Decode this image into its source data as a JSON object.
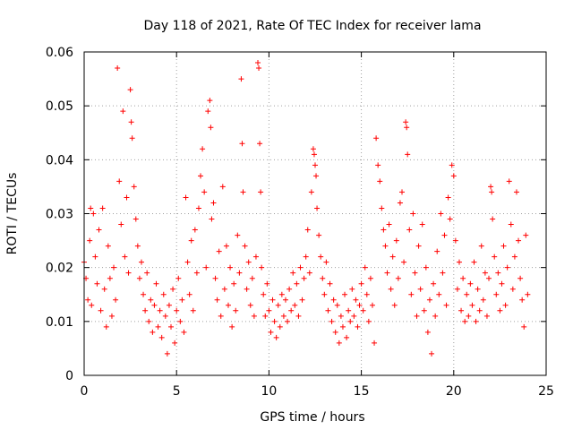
{
  "chart_data": {
    "type": "scatter",
    "title": "Day 118 of 2021, Rate Of TEC Index for receiver lama",
    "xlabel": "GPS time / hours",
    "ylabel": "ROTI / TECUs",
    "xlim": [
      0,
      25
    ],
    "ylim": [
      0,
      0.06
    ],
    "x_ticks": [
      0,
      5,
      10,
      15,
      20,
      25
    ],
    "y_ticks": [
      0,
      0.01,
      0.02,
      0.03,
      0.04,
      0.05,
      0.06
    ],
    "x_tick_labels": [
      "0",
      "5",
      "10",
      "15",
      "20",
      "25"
    ],
    "y_tick_labels": [
      "0",
      "0.01",
      "0.02",
      "0.03",
      "0.04",
      "0.05",
      "0.06"
    ],
    "grid": true,
    "marker": "+",
    "color": "#ff0000",
    "series": [
      {
        "name": "ROTI",
        "points": [
          [
            0.0,
            0.021
          ],
          [
            0.1,
            0.018
          ],
          [
            0.2,
            0.014
          ],
          [
            0.3,
            0.025
          ],
          [
            0.35,
            0.031
          ],
          [
            0.4,
            0.013
          ],
          [
            0.5,
            0.03
          ],
          [
            0.6,
            0.022
          ],
          [
            0.7,
            0.017
          ],
          [
            0.8,
            0.027
          ],
          [
            0.9,
            0.012
          ],
          [
            1.0,
            0.031
          ],
          [
            1.1,
            0.016
          ],
          [
            1.2,
            0.009
          ],
          [
            1.3,
            0.024
          ],
          [
            1.4,
            0.018
          ],
          [
            1.5,
            0.011
          ],
          [
            1.6,
            0.02
          ],
          [
            1.7,
            0.014
          ],
          [
            1.8,
            0.057
          ],
          [
            1.9,
            0.036
          ],
          [
            2.0,
            0.028
          ],
          [
            2.1,
            0.049
          ],
          [
            2.2,
            0.022
          ],
          [
            2.3,
            0.033
          ],
          [
            2.4,
            0.019
          ],
          [
            2.5,
            0.053
          ],
          [
            2.55,
            0.047
          ],
          [
            2.6,
            0.044
          ],
          [
            2.7,
            0.035
          ],
          [
            2.8,
            0.029
          ],
          [
            2.9,
            0.024
          ],
          [
            3.0,
            0.018
          ],
          [
            3.1,
            0.021
          ],
          [
            3.2,
            0.015
          ],
          [
            3.3,
            0.012
          ],
          [
            3.4,
            0.019
          ],
          [
            3.5,
            0.01
          ],
          [
            3.6,
            0.014
          ],
          [
            3.7,
            0.008
          ],
          [
            3.8,
            0.013
          ],
          [
            3.9,
            0.017
          ],
          [
            4.0,
            0.009
          ],
          [
            4.1,
            0.012
          ],
          [
            4.2,
            0.007
          ],
          [
            4.3,
            0.015
          ],
          [
            4.4,
            0.011
          ],
          [
            4.5,
            0.004
          ],
          [
            4.6,
            0.013
          ],
          [
            4.7,
            0.009
          ],
          [
            4.8,
            0.016
          ],
          [
            4.9,
            0.006
          ],
          [
            5.0,
            0.012
          ],
          [
            5.1,
            0.018
          ],
          [
            5.2,
            0.01
          ],
          [
            5.3,
            0.014
          ],
          [
            5.4,
            0.008
          ],
          [
            5.5,
            0.033
          ],
          [
            5.6,
            0.021
          ],
          [
            5.7,
            0.015
          ],
          [
            5.8,
            0.025
          ],
          [
            5.9,
            0.012
          ],
          [
            6.0,
            0.027
          ],
          [
            6.1,
            0.019
          ],
          [
            6.2,
            0.031
          ],
          [
            6.3,
            0.037
          ],
          [
            6.4,
            0.042
          ],
          [
            6.5,
            0.034
          ],
          [
            6.6,
            0.02
          ],
          [
            6.7,
            0.049
          ],
          [
            6.8,
            0.051
          ],
          [
            6.85,
            0.046
          ],
          [
            6.9,
            0.029
          ],
          [
            7.0,
            0.032
          ],
          [
            7.1,
            0.018
          ],
          [
            7.2,
            0.014
          ],
          [
            7.3,
            0.023
          ],
          [
            7.4,
            0.011
          ],
          [
            7.5,
            0.035
          ],
          [
            7.6,
            0.016
          ],
          [
            7.7,
            0.024
          ],
          [
            7.8,
            0.013
          ],
          [
            7.9,
            0.02
          ],
          [
            8.0,
            0.009
          ],
          [
            8.1,
            0.017
          ],
          [
            8.2,
            0.012
          ],
          [
            8.3,
            0.026
          ],
          [
            8.4,
            0.019
          ],
          [
            8.5,
            0.055
          ],
          [
            8.55,
            0.043
          ],
          [
            8.6,
            0.034
          ],
          [
            8.7,
            0.024
          ],
          [
            8.8,
            0.016
          ],
          [
            8.9,
            0.021
          ],
          [
            9.0,
            0.013
          ],
          [
            9.1,
            0.018
          ],
          [
            9.2,
            0.011
          ],
          [
            9.3,
            0.022
          ],
          [
            9.4,
            0.058
          ],
          [
            9.45,
            0.057
          ],
          [
            9.5,
            0.043
          ],
          [
            9.55,
            0.034
          ],
          [
            9.6,
            0.02
          ],
          [
            9.7,
            0.015
          ],
          [
            9.8,
            0.011
          ],
          [
            9.9,
            0.017
          ],
          [
            10.0,
            0.012
          ],
          [
            10.1,
            0.008
          ],
          [
            10.2,
            0.014
          ],
          [
            10.3,
            0.01
          ],
          [
            10.4,
            0.007
          ],
          [
            10.5,
            0.013
          ],
          [
            10.6,
            0.009
          ],
          [
            10.7,
            0.015
          ],
          [
            10.8,
            0.011
          ],
          [
            10.9,
            0.014
          ],
          [
            11.0,
            0.01
          ],
          [
            11.1,
            0.016
          ],
          [
            11.2,
            0.012
          ],
          [
            11.3,
            0.019
          ],
          [
            11.4,
            0.013
          ],
          [
            11.5,
            0.017
          ],
          [
            11.6,
            0.011
          ],
          [
            11.7,
            0.02
          ],
          [
            11.8,
            0.014
          ],
          [
            11.9,
            0.018
          ],
          [
            12.0,
            0.022
          ],
          [
            12.1,
            0.027
          ],
          [
            12.2,
            0.019
          ],
          [
            12.3,
            0.034
          ],
          [
            12.4,
            0.042
          ],
          [
            12.45,
            0.041
          ],
          [
            12.5,
            0.039
          ],
          [
            12.55,
            0.037
          ],
          [
            12.6,
            0.031
          ],
          [
            12.7,
            0.026
          ],
          [
            12.8,
            0.022
          ],
          [
            12.9,
            0.018
          ],
          [
            13.0,
            0.015
          ],
          [
            13.1,
            0.021
          ],
          [
            13.2,
            0.012
          ],
          [
            13.3,
            0.017
          ],
          [
            13.4,
            0.01
          ],
          [
            13.5,
            0.014
          ],
          [
            13.6,
            0.008
          ],
          [
            13.7,
            0.013
          ],
          [
            13.8,
            0.006
          ],
          [
            13.9,
            0.011
          ],
          [
            14.0,
            0.009
          ],
          [
            14.1,
            0.015
          ],
          [
            14.2,
            0.007
          ],
          [
            14.3,
            0.012
          ],
          [
            14.4,
            0.01
          ],
          [
            14.5,
            0.016
          ],
          [
            14.6,
            0.011
          ],
          [
            14.7,
            0.014
          ],
          [
            14.8,
            0.009
          ],
          [
            14.9,
            0.013
          ],
          [
            15.0,
            0.017
          ],
          [
            15.1,
            0.012
          ],
          [
            15.2,
            0.02
          ],
          [
            15.3,
            0.015
          ],
          [
            15.4,
            0.01
          ],
          [
            15.5,
            0.018
          ],
          [
            15.6,
            0.013
          ],
          [
            15.7,
            0.006
          ],
          [
            15.8,
            0.044
          ],
          [
            15.9,
            0.039
          ],
          [
            16.0,
            0.036
          ],
          [
            16.1,
            0.031
          ],
          [
            16.2,
            0.027
          ],
          [
            16.3,
            0.024
          ],
          [
            16.4,
            0.019
          ],
          [
            16.5,
            0.028
          ],
          [
            16.6,
            0.016
          ],
          [
            16.7,
            0.022
          ],
          [
            16.8,
            0.013
          ],
          [
            16.9,
            0.025
          ],
          [
            17.0,
            0.018
          ],
          [
            17.1,
            0.032
          ],
          [
            17.2,
            0.034
          ],
          [
            17.3,
            0.021
          ],
          [
            17.4,
            0.047
          ],
          [
            17.45,
            0.046
          ],
          [
            17.5,
            0.041
          ],
          [
            17.6,
            0.027
          ],
          [
            17.7,
            0.015
          ],
          [
            17.8,
            0.03
          ],
          [
            17.9,
            0.019
          ],
          [
            18.0,
            0.011
          ],
          [
            18.1,
            0.024
          ],
          [
            18.2,
            0.016
          ],
          [
            18.3,
            0.028
          ],
          [
            18.4,
            0.012
          ],
          [
            18.5,
            0.02
          ],
          [
            18.6,
            0.008
          ],
          [
            18.7,
            0.014
          ],
          [
            18.8,
            0.004
          ],
          [
            18.9,
            0.017
          ],
          [
            19.0,
            0.011
          ],
          [
            19.1,
            0.023
          ],
          [
            19.2,
            0.015
          ],
          [
            19.3,
            0.03
          ],
          [
            19.4,
            0.019
          ],
          [
            19.5,
            0.026
          ],
          [
            19.6,
            0.013
          ],
          [
            19.7,
            0.033
          ],
          [
            19.8,
            0.029
          ],
          [
            19.9,
            0.039
          ],
          [
            20.0,
            0.037
          ],
          [
            20.1,
            0.025
          ],
          [
            20.2,
            0.016
          ],
          [
            20.3,
            0.021
          ],
          [
            20.4,
            0.012
          ],
          [
            20.5,
            0.018
          ],
          [
            20.6,
            0.01
          ],
          [
            20.7,
            0.015
          ],
          [
            20.8,
            0.011
          ],
          [
            20.9,
            0.017
          ],
          [
            21.0,
            0.013
          ],
          [
            21.1,
            0.021
          ],
          [
            21.2,
            0.01
          ],
          [
            21.3,
            0.016
          ],
          [
            21.4,
            0.012
          ],
          [
            21.5,
            0.024
          ],
          [
            21.6,
            0.014
          ],
          [
            21.7,
            0.019
          ],
          [
            21.8,
            0.011
          ],
          [
            21.9,
            0.018
          ],
          [
            22.0,
            0.035
          ],
          [
            22.05,
            0.034
          ],
          [
            22.1,
            0.029
          ],
          [
            22.2,
            0.022
          ],
          [
            22.3,
            0.015
          ],
          [
            22.4,
            0.019
          ],
          [
            22.5,
            0.012
          ],
          [
            22.6,
            0.017
          ],
          [
            22.7,
            0.024
          ],
          [
            22.8,
            0.013
          ],
          [
            22.9,
            0.02
          ],
          [
            23.0,
            0.036
          ],
          [
            23.1,
            0.028
          ],
          [
            23.2,
            0.016
          ],
          [
            23.3,
            0.022
          ],
          [
            23.4,
            0.034
          ],
          [
            23.5,
            0.025
          ],
          [
            23.6,
            0.018
          ],
          [
            23.7,
            0.014
          ],
          [
            23.8,
            0.009
          ],
          [
            23.9,
            0.026
          ],
          [
            24.0,
            0.015
          ]
        ]
      }
    ]
  }
}
